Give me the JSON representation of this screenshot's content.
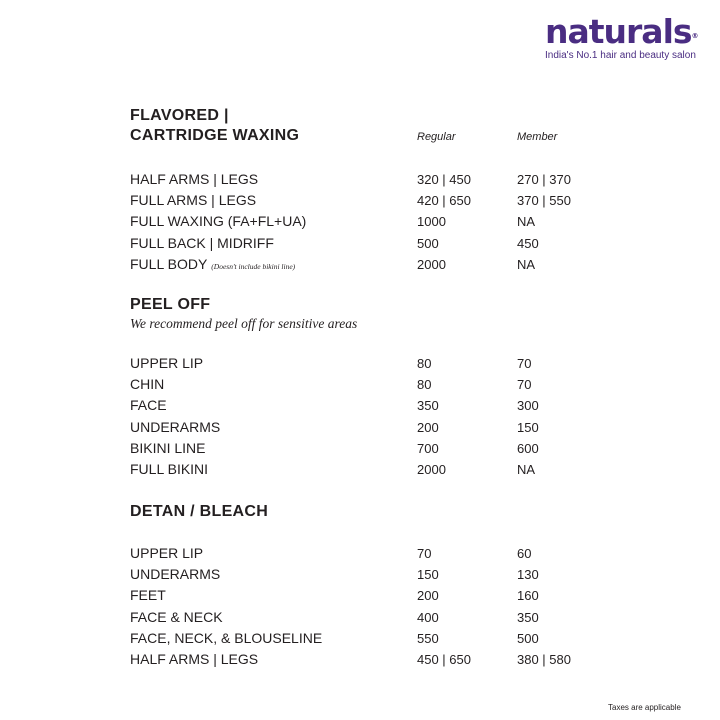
{
  "brand": {
    "name": "naturals",
    "registered": "®",
    "tagline": "India's No.1 hair and beauty salon",
    "color": "#4a2d82"
  },
  "columns": {
    "regular": "Regular",
    "member": "Member"
  },
  "sections": [
    {
      "title_line1": "FLAVORED |",
      "title_line2": "CARTRIDGE WAXING",
      "items": [
        {
          "name": "HALF ARMS | LEGS",
          "regular": "320 | 450",
          "member": "270 | 370"
        },
        {
          "name": "FULL ARMS | LEGS",
          "regular": "420 | 650",
          "member": "370 | 550"
        },
        {
          "name": "FULL WAXING (FA+FL+UA)",
          "regular": "1000",
          "member": "NA"
        },
        {
          "name": "FULL BACK | MIDRIFF",
          "regular": "500",
          "member": "450"
        },
        {
          "name": "FULL BODY",
          "note": "(Doesn't include bikini line)",
          "regular": "2000",
          "member": "NA"
        }
      ]
    },
    {
      "title": "PEEL OFF",
      "subtitle": "We recommend peel off for sensitive areas",
      "items": [
        {
          "name": "UPPER LIP",
          "regular": "80",
          "member": "70"
        },
        {
          "name": "CHIN",
          "regular": "80",
          "member": "70"
        },
        {
          "name": "FACE",
          "regular": "350",
          "member": "300"
        },
        {
          "name": "UNDERARMS",
          "regular": "200",
          "member": "150"
        },
        {
          "name": "BIKINI LINE",
          "regular": "700",
          "member": "600"
        },
        {
          "name": "FULL BIKINI",
          "regular": "2000",
          "member": "NA"
        }
      ]
    },
    {
      "title": "DETAN / BLEACH",
      "items": [
        {
          "name": "UPPER LIP",
          "regular": "70",
          "member": "60"
        },
        {
          "name": "UNDERARMS",
          "regular": "150",
          "member": "130"
        },
        {
          "name": "FEET",
          "regular": "200",
          "member": "160"
        },
        {
          "name": "FACE & NECK",
          "regular": "400",
          "member": "350"
        },
        {
          "name": "FACE, NECK, & BLOUSELINE",
          "regular": "550",
          "member": "500"
        },
        {
          "name": "HALF ARMS | LEGS",
          "regular": "450 | 650",
          "member": "380 | 580"
        }
      ]
    }
  ],
  "footer": {
    "taxes": "Taxes are applicable"
  }
}
